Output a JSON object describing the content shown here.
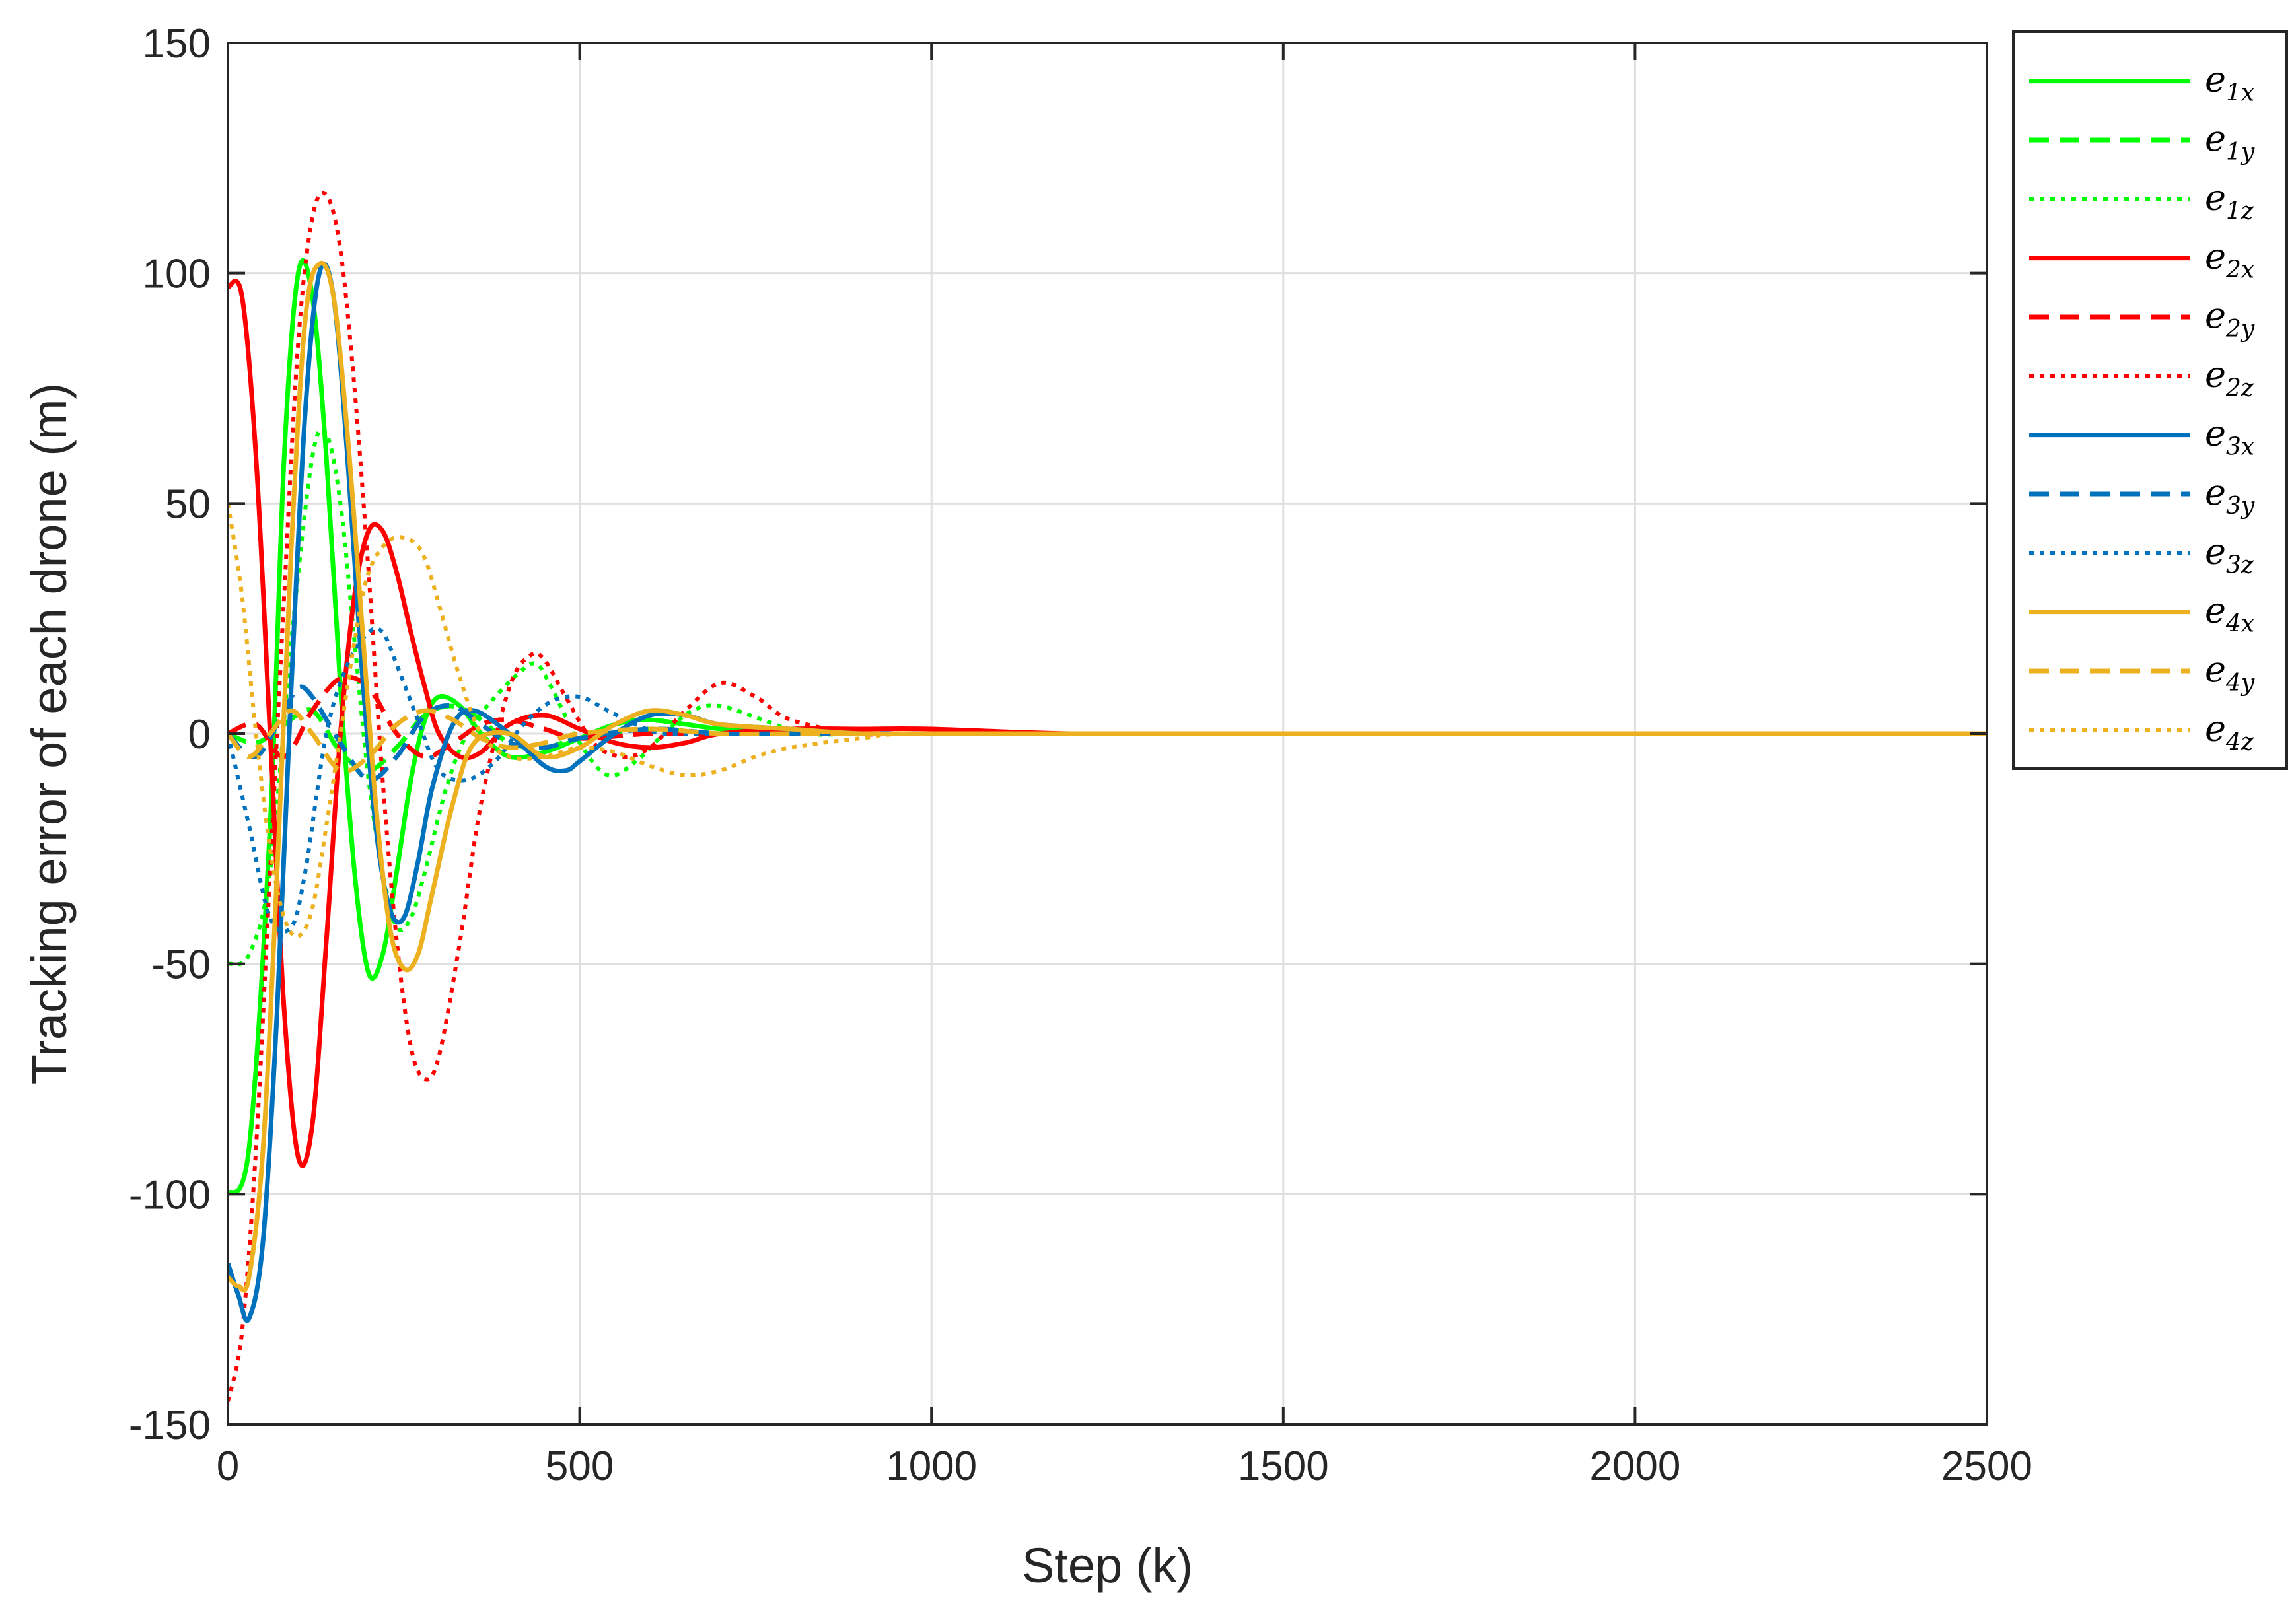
{
  "chart_data": {
    "type": "line",
    "title": "",
    "xlabel": "Step (k)",
    "ylabel": "Tracking error of each drone (m)",
    "xlim": [
      0,
      2500
    ],
    "ylim": [
      -150,
      150
    ],
    "xticks": [
      0,
      500,
      1000,
      1500,
      2000,
      2500
    ],
    "yticks": [
      -150,
      -100,
      -50,
      0,
      50,
      100,
      150
    ],
    "xtick_labels": [
      "0",
      "500",
      "1000",
      "1500",
      "2000",
      "2500"
    ],
    "ytick_labels": [
      "-150",
      "-100",
      "-50",
      "0",
      "50",
      "100",
      "150"
    ],
    "grid": true,
    "legend_placement": "outside-right-top",
    "series": [
      {
        "name": "e1x",
        "sym": "e",
        "sub": "1x",
        "color": "#00ff00",
        "dash": "solid",
        "x": [
          0,
          30,
          60,
          80,
          100,
          120,
          140,
          160,
          180,
          200,
          220,
          240,
          260,
          280,
          300,
          330,
          360,
          400,
          450,
          500,
          550,
          600,
          700,
          800,
          900,
          1000,
          1200,
          1500,
          2000,
          2500
        ],
        "y": [
          -100,
          -90,
          -20,
          60,
          100,
          95,
          60,
          10,
          -30,
          -52,
          -48,
          -30,
          -10,
          3,
          8,
          6,
          0,
          -5,
          -4,
          -1,
          2,
          3,
          1,
          0,
          0,
          0,
          0,
          0,
          0,
          0
        ]
      },
      {
        "name": "e1y",
        "sym": "e",
        "sub": "1y",
        "color": "#00ff00",
        "dash": "dashed",
        "x": [
          0,
          40,
          80,
          120,
          160,
          200,
          240,
          280,
          320,
          360,
          400,
          450,
          500,
          600,
          700,
          800,
          1000,
          1500,
          2000,
          2500
        ],
        "y": [
          0,
          -2,
          2,
          5,
          -4,
          -8,
          -3,
          4,
          6,
          3,
          -2,
          -3,
          -1,
          1,
          0,
          0,
          0,
          0,
          0,
          0
        ]
      },
      {
        "name": "e1z",
        "sym": "e",
        "sub": "1z",
        "color": "#00ff00",
        "dash": "dotted",
        "x": [
          0,
          30,
          60,
          90,
          120,
          140,
          160,
          180,
          200,
          220,
          240,
          260,
          280,
          310,
          340,
          380,
          420,
          440,
          460,
          500,
          540,
          580,
          620,
          660,
          700,
          760,
          820,
          900,
          1000,
          1500,
          2000,
          2500
        ],
        "y": [
          -50,
          -48,
          -30,
          20,
          60,
          65,
          50,
          20,
          -10,
          -30,
          -42,
          -40,
          -30,
          -12,
          0,
          8,
          14,
          15,
          10,
          -2,
          -9,
          -6,
          0,
          5,
          6,
          3,
          0,
          0,
          0,
          0,
          0,
          0
        ]
      },
      {
        "name": "e2x",
        "sym": "e",
        "sub": "2x",
        "color": "#ff0000",
        "dash": "solid",
        "x": [
          0,
          20,
          40,
          60,
          80,
          100,
          120,
          140,
          160,
          180,
          200,
          220,
          240,
          260,
          280,
          300,
          330,
          360,
          400,
          450,
          500,
          550,
          600,
          650,
          700,
          800,
          900,
          1000,
          1200,
          1500,
          2000,
          2500
        ],
        "y": [
          97,
          95,
          60,
          0,
          -60,
          -92,
          -85,
          -45,
          0,
          30,
          44,
          44,
          35,
          22,
          10,
          0,
          -5,
          -4,
          2,
          4,
          1,
          -2,
          -3,
          -2,
          0,
          1,
          1,
          1,
          0,
          0,
          0,
          0
        ]
      },
      {
        "name": "e2y",
        "sym": "e",
        "sub": "2y",
        "color": "#ff0000",
        "dash": "dashed",
        "x": [
          0,
          40,
          80,
          120,
          160,
          200,
          240,
          280,
          320,
          360,
          400,
          450,
          500,
          600,
          700,
          800,
          1000,
          1500,
          2000,
          2500
        ],
        "y": [
          0,
          2,
          -5,
          5,
          12,
          10,
          0,
          -5,
          -2,
          2,
          3,
          1,
          -1,
          0,
          0,
          0,
          0,
          0,
          0,
          0
        ]
      },
      {
        "name": "e2z",
        "sym": "e",
        "sub": "2z",
        "color": "#ff0000",
        "dash": "dotted",
        "x": [
          0,
          20,
          40,
          60,
          80,
          100,
          120,
          140,
          160,
          180,
          200,
          220,
          240,
          260,
          280,
          300,
          330,
          360,
          400,
          430,
          450,
          480,
          520,
          560,
          600,
          650,
          700,
          750,
          800,
          900,
          1000,
          1500,
          2000,
          2500
        ],
        "y": [
          -145,
          -130,
          -90,
          -30,
          30,
          85,
          112,
          117,
          105,
          75,
          35,
          -10,
          -45,
          -68,
          -75,
          -70,
          -45,
          -15,
          10,
          17,
          16,
          8,
          -2,
          -5,
          -3,
          5,
          11,
          8,
          3,
          0,
          0,
          0,
          0,
          0
        ]
      },
      {
        "name": "e3x",
        "sym": "e",
        "sub": "3x",
        "color": "#0072bd",
        "dash": "solid",
        "x": [
          0,
          15,
          30,
          50,
          70,
          90,
          110,
          130,
          150,
          170,
          190,
          210,
          230,
          250,
          270,
          290,
          320,
          350,
          400,
          450,
          480,
          500,
          550,
          600,
          650,
          700,
          800,
          900,
          1000,
          1200,
          1500,
          2000,
          2500
        ],
        "y": [
          -115,
          -122,
          -127,
          -110,
          -60,
          10,
          70,
          100,
          95,
          60,
          15,
          -20,
          -38,
          -40,
          -28,
          -12,
          2,
          5,
          0,
          -7,
          -8,
          -6,
          0,
          4,
          4,
          2,
          1,
          0,
          0,
          0,
          0,
          0,
          0
        ]
      },
      {
        "name": "e3y",
        "sym": "e",
        "sub": "3y",
        "color": "#0072bd",
        "dash": "dashed",
        "x": [
          0,
          40,
          80,
          100,
          120,
          160,
          200,
          240,
          280,
          320,
          360,
          400,
          450,
          500,
          600,
          700,
          800,
          1000,
          1500,
          2000,
          2500
        ],
        "y": [
          0,
          -5,
          5,
          10,
          8,
          -2,
          -10,
          -5,
          4,
          6,
          2,
          -2,
          -3,
          -1,
          1,
          0,
          0,
          0,
          0,
          0,
          0
        ]
      },
      {
        "name": "e3z",
        "sym": "e",
        "sub": "3z",
        "color": "#0072bd",
        "dash": "dotted",
        "x": [
          0,
          30,
          60,
          90,
          110,
          140,
          170,
          200,
          220,
          240,
          270,
          300,
          340,
          380,
          420,
          460,
          500,
          540,
          580,
          620,
          700,
          800,
          900,
          1000,
          1500,
          2000,
          2500
        ],
        "y": [
          0,
          -20,
          -40,
          -42,
          -30,
          0,
          15,
          22,
          22,
          15,
          3,
          -8,
          -10,
          -6,
          2,
          7,
          8,
          5,
          2,
          0,
          0,
          0,
          0,
          0,
          0,
          0,
          0
        ]
      },
      {
        "name": "e4x",
        "sym": "e",
        "sub": "4x",
        "color": "#edb120",
        "dash": "solid",
        "x": [
          0,
          15,
          30,
          50,
          70,
          90,
          110,
          130,
          150,
          170,
          190,
          210,
          230,
          250,
          270,
          290,
          320,
          350,
          400,
          450,
          500,
          550,
          600,
          650,
          700,
          800,
          900,
          1000,
          1200,
          1500,
          2000,
          2500
        ],
        "y": [
          -118,
          -120,
          -118,
          -90,
          -30,
          40,
          90,
          102,
          95,
          65,
          25,
          -15,
          -42,
          -51,
          -48,
          -35,
          -15,
          -2,
          0,
          -5,
          -3,
          2,
          5,
          4,
          2,
          1,
          0,
          0,
          0,
          0,
          0,
          0
        ]
      },
      {
        "name": "e4y",
        "sym": "e",
        "sub": "4y",
        "color": "#edb120",
        "dash": "dashed",
        "x": [
          0,
          30,
          60,
          90,
          120,
          160,
          200,
          240,
          280,
          320,
          360,
          400,
          450,
          500,
          600,
          700,
          800,
          1000,
          1500,
          2000,
          2500
        ],
        "y": [
          0,
          -5,
          0,
          5,
          0,
          -8,
          -5,
          2,
          5,
          3,
          -1,
          -3,
          -2,
          0,
          1,
          0,
          0,
          0,
          0,
          0,
          0
        ]
      },
      {
        "name": "e4z",
        "sym": "e",
        "sub": "4z",
        "color": "#edb120",
        "dash": "dotted",
        "x": [
          0,
          20,
          40,
          60,
          80,
          100,
          120,
          140,
          160,
          180,
          200,
          230,
          260,
          280,
          300,
          330,
          360,
          400,
          450,
          500,
          550,
          600,
          650,
          700,
          750,
          800,
          900,
          1000,
          1500,
          2000,
          2500
        ],
        "y": [
          50,
          30,
          0,
          -25,
          -40,
          -44,
          -38,
          -20,
          0,
          20,
          35,
          42,
          42,
          38,
          28,
          12,
          0,
          -5,
          -5,
          -3,
          -4,
          -7,
          -9,
          -8,
          -5,
          -3,
          -1,
          0,
          0,
          0,
          0
        ]
      }
    ]
  }
}
